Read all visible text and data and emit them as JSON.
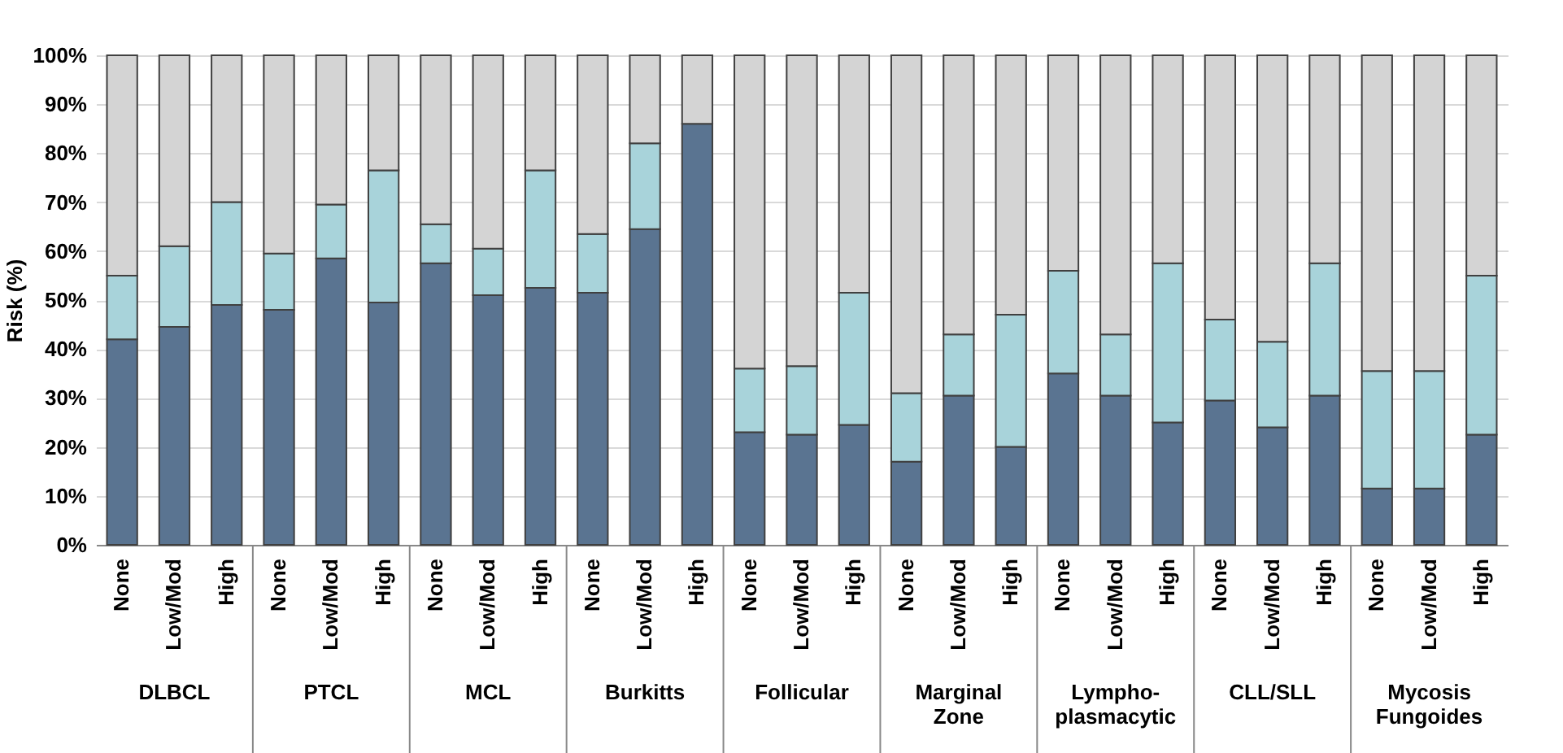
{
  "chart_data": {
    "type": "bar",
    "stacked": true,
    "ylabel": "Risk (%)",
    "categories": [
      "None",
      "Low/Mod",
      "High",
      "None",
      "Low/Mod",
      "High",
      "None",
      "Low/Mod",
      "High",
      "None",
      "Low/Mod",
      "High",
      "None",
      "Low/Mod",
      "High",
      "None",
      "Low/Mod",
      "High",
      "None",
      "Low/Mod",
      "High",
      "None",
      "Low/Mod",
      "High",
      "None",
      "Low/Mod",
      "High"
    ],
    "series": [
      {
        "color": "#5a7491",
        "values": [
          42,
          44.5,
          49,
          48,
          58.5,
          49.5,
          57.5,
          51,
          52.5,
          51.5,
          64.5,
          86,
          23,
          22.5,
          24.5,
          17,
          30.5,
          20,
          35,
          30.5,
          25,
          29.5,
          24,
          30.5,
          11.5,
          11.5,
          22.5
        ]
      },
      {
        "color": "#a8d3da",
        "values": [
          13,
          16.5,
          21,
          11.5,
          11,
          27,
          8,
          9.5,
          24,
          12,
          17.5,
          0,
          13,
          14,
          27,
          14,
          12.5,
          27,
          21,
          12.5,
          32.5,
          16.5,
          17.5,
          27,
          24,
          24,
          32.5
        ]
      },
      {
        "color": "#d4d4d4",
        "values": [
          45,
          39,
          30,
          40.5,
          30.5,
          23.5,
          34.5,
          39.5,
          23.5,
          36.5,
          18,
          14,
          64,
          63.5,
          48.5,
          69,
          57,
          53,
          44,
          57,
          42.5,
          54,
          58.5,
          42.5,
          64.5,
          64.5,
          45
        ]
      }
    ],
    "annotations": [
      "DLBCL",
      "PTCL",
      "MCL",
      "Burkitts",
      "Follicular",
      "Marginal\nZone",
      "Lympho-\nplasmacytic",
      "CLL/SLL",
      "Mycosis\nFungoides"
    ],
    "ylim": [
      0,
      100
    ],
    "yticks": [
      {
        "value": 0,
        "label": "0%"
      },
      {
        "value": 10,
        "label": "10%"
      },
      {
        "value": 20,
        "label": "20%"
      },
      {
        "value": 30,
        "label": "30%"
      },
      {
        "value": 40,
        "label": "40%"
      },
      {
        "value": 50,
        "label": "50%"
      },
      {
        "value": 60,
        "label": "60%"
      },
      {
        "value": 70,
        "label": "70%"
      },
      {
        "value": 80,
        "label": "80%"
      },
      {
        "value": 90,
        "label": "90%"
      },
      {
        "value": 100,
        "label": "100%"
      }
    ],
    "grid": "y"
  }
}
